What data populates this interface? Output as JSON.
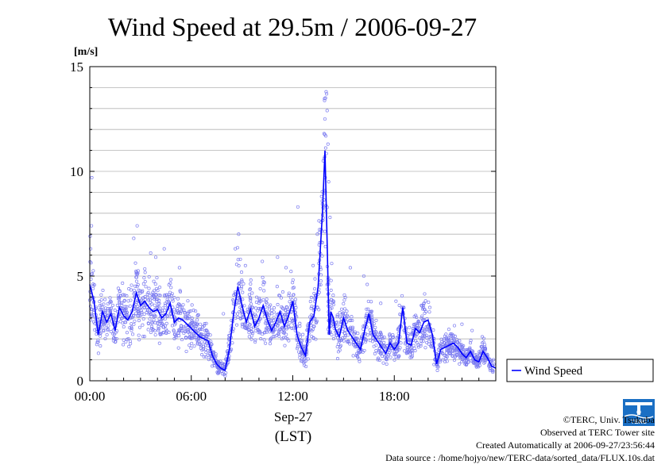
{
  "chart_data": {
    "type": "scatter",
    "title": "Wind Speed at 29.5m / 2006-09-27",
    "ylabel": "[m/s]",
    "xlabel_date": "Sep-27",
    "xlabel_unit": "(LST)",
    "xlim_hours": [
      0,
      24
    ],
    "ylim": [
      0,
      15
    ],
    "x_ticks": [
      "00:00",
      "06:00",
      "12:00",
      "18:00"
    ],
    "y_ticks": [
      "0",
      "5",
      "10",
      "15"
    ],
    "grid": true,
    "legend": {
      "position": "right",
      "entries": [
        "Wind Speed"
      ]
    },
    "colors": {
      "line": "#0000ff",
      "points": "#7b7bf0"
    },
    "series": [
      {
        "name": "Wind Speed",
        "x": [
          0.0,
          0.25,
          0.5,
          0.75,
          1.0,
          1.25,
          1.5,
          1.75,
          2.0,
          2.25,
          2.5,
          2.75,
          3.0,
          3.25,
          3.5,
          3.75,
          4.0,
          4.25,
          4.5,
          4.75,
          5.0,
          5.25,
          5.5,
          5.75,
          6.0,
          6.25,
          6.5,
          6.75,
          7.0,
          7.25,
          7.5,
          7.75,
          8.0,
          8.25,
          8.5,
          8.75,
          9.0,
          9.25,
          9.5,
          9.75,
          10.0,
          10.25,
          10.5,
          10.75,
          11.0,
          11.25,
          11.5,
          11.75,
          12.0,
          12.25,
          12.5,
          12.75,
          13.0,
          13.25,
          13.5,
          13.75,
          13.9,
          14.05,
          14.15,
          14.25,
          14.4,
          14.5,
          14.75,
          15.0,
          15.25,
          15.5,
          15.75,
          16.0,
          16.25,
          16.5,
          16.75,
          17.0,
          17.25,
          17.5,
          17.75,
          18.0,
          18.25,
          18.5,
          18.75,
          19.0,
          19.25,
          19.5,
          19.75,
          20.0,
          20.25,
          20.5,
          20.75,
          21.0,
          21.25,
          21.5,
          21.75,
          22.0,
          22.25,
          22.5,
          22.75,
          23.0,
          23.25,
          23.5,
          23.75,
          24.0
        ],
        "values": [
          4.6,
          3.8,
          2.2,
          3.3,
          2.8,
          3.2,
          2.4,
          3.5,
          3.1,
          2.9,
          3.3,
          4.2,
          3.6,
          3.8,
          3.5,
          3.3,
          3.4,
          3.0,
          3.2,
          3.7,
          2.8,
          3.0,
          2.9,
          2.7,
          2.5,
          2.3,
          2.1,
          2.0,
          1.9,
          1.2,
          0.8,
          0.6,
          0.5,
          1.5,
          3.2,
          4.5,
          3.6,
          2.8,
          3.4,
          2.6,
          3.0,
          3.6,
          2.9,
          2.4,
          2.8,
          3.3,
          2.6,
          3.1,
          3.8,
          2.2,
          1.6,
          1.2,
          2.8,
          3.1,
          4.5,
          8.0,
          11.0,
          6.0,
          2.2,
          3.3,
          3.0,
          2.5,
          2.1,
          3.0,
          2.4,
          2.1,
          1.8,
          1.5,
          2.4,
          3.2,
          2.2,
          1.9,
          1.6,
          1.3,
          1.8,
          1.5,
          1.8,
          3.5,
          1.8,
          1.7,
          2.5,
          2.3,
          2.8,
          2.9,
          2.2,
          0.8,
          1.5,
          1.6,
          1.7,
          1.8,
          1.6,
          1.3,
          1.1,
          1.4,
          1.0,
          0.9,
          1.4,
          1.1,
          0.7,
          0.6
        ],
        "point_sample_hours": [
          0.02,
          0.05,
          0.1,
          0.12,
          2.6,
          2.8,
          3.6,
          3.9,
          4.4,
          5.3,
          7.9,
          8.6,
          8.8,
          8.9,
          9.2,
          10.2,
          11.1,
          11.6,
          12.3,
          13.2,
          13.45,
          13.6,
          13.7,
          13.8,
          13.85,
          13.9,
          13.93,
          13.97,
          14.0,
          14.03,
          14.08,
          14.12,
          14.2,
          14.3,
          15.4,
          16.2,
          16.4,
          17.2,
          18.1,
          18.3,
          19.6,
          19.8,
          20.1,
          22.0,
          22.6,
          23.2
        ],
        "point_sample_values": [
          6.9,
          6.3,
          7.4,
          9.7,
          6.8,
          7.4,
          6.1,
          5.9,
          6.3,
          5.4,
          3.2,
          6.3,
          7.0,
          5.8,
          5.5,
          5.7,
          5.9,
          5.4,
          8.3,
          5.5,
          7.0,
          6.6,
          8.8,
          10.5,
          11.8,
          12.5,
          13.5,
          13.8,
          13.7,
          12.9,
          11.3,
          9.5,
          7.8,
          5.6,
          5.4,
          5.0,
          4.6,
          3.7,
          3.8,
          3.6,
          3.6,
          3.4,
          3.5,
          2.7,
          2.4,
          2.1
        ]
      }
    ]
  },
  "footer": {
    "copyright": "©TERC, Univ. Tsukuba",
    "observed": "Observed at TERC Tower site",
    "created": "Created Automatically at 2006-09-27/23:56:44",
    "source": "Data source : /home/hojyo/new/TERC-data/sorted_data/FLUX.10s.dat"
  },
  "logo": {
    "text": "TERC",
    "color": "#1a6fc4"
  }
}
